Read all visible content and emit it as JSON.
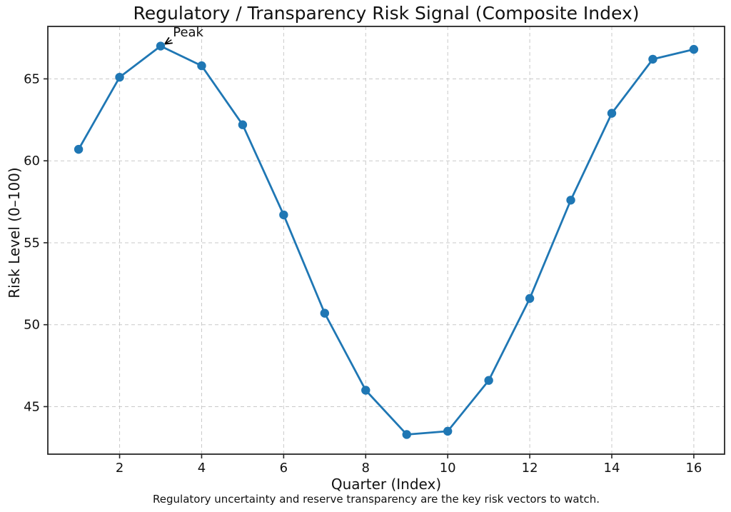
{
  "chart_data": {
    "type": "line",
    "title": "Regulatory / Transparency Risk Signal (Composite Index)",
    "xlabel": "Quarter (Index)",
    "ylabel": "Risk Level (0–100)",
    "footnote": "Regulatory uncertainty and reserve transparency are the key risk vectors to watch.",
    "x": [
      1,
      2,
      3,
      4,
      5,
      6,
      7,
      8,
      9,
      10,
      11,
      12,
      13,
      14,
      15,
      16
    ],
    "y": [
      60.7,
      65.1,
      67.0,
      65.8,
      62.2,
      56.7,
      50.7,
      46.0,
      43.3,
      43.5,
      46.6,
      51.6,
      57.6,
      62.9,
      66.2,
      66.8
    ],
    "x_ticks": [
      2,
      4,
      6,
      8,
      10,
      12,
      14,
      16
    ],
    "y_ticks": [
      45,
      50,
      55,
      60,
      65
    ],
    "xlim": [
      0.25,
      16.75
    ],
    "ylim": [
      42.1,
      68.2
    ],
    "grid": true,
    "grid_style": "dashed",
    "legend": "none",
    "line_color": "#1f77b4",
    "marker": "circle",
    "annotation": {
      "text": "Peak",
      "point_x": 3,
      "point_y": 67.0,
      "label_x": 3.3,
      "label_y": 67.6
    }
  }
}
